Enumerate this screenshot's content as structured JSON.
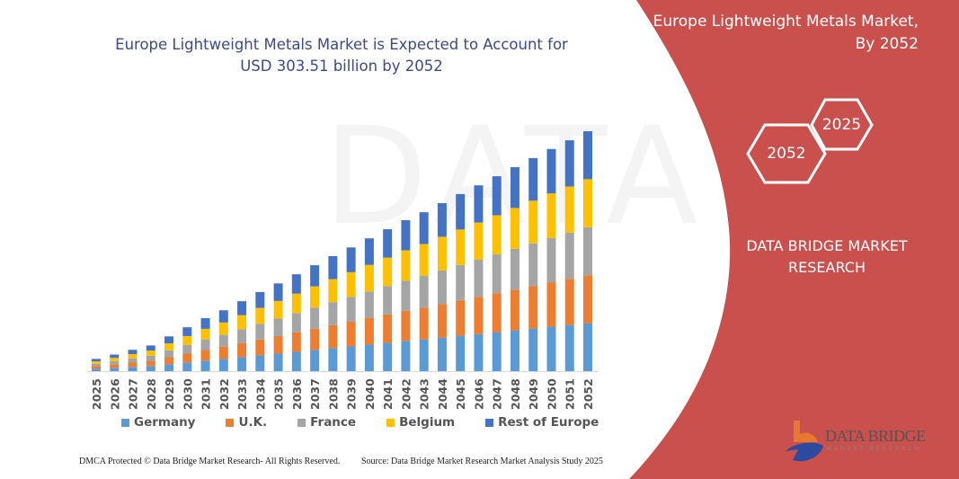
{
  "header": {
    "title_line1": "Europe Lightweight Metals Market is Expected to Account for",
    "title_line2": "USD 303.51 billion by 2052"
  },
  "side_panel": {
    "title_line1": "Europe Lightweight Metals Market,",
    "title_line2": "By 2052",
    "hex_left": "2052",
    "hex_right": "2025",
    "brand_line1": "DATA BRIDGE MARKET",
    "brand_line2": "RESEARCH",
    "logo_text": "DATA BRIDGE",
    "logo_sub": "MARKET RESEARCH",
    "color": "#c9504c"
  },
  "footer": {
    "left": "DMCA Protected © Data Bridge Market Research- All Rights Reserved.",
    "right": "Source: Data Bridge Market Research Market Analysis Study 2025"
  },
  "chart_data": {
    "type": "bar",
    "stacked": true,
    "title": "Europe Lightweight Metals Market is Expected to Account for USD 303.51 billion by 2052",
    "xlabel": "",
    "ylabel": "",
    "y_axis_visible": false,
    "grid": false,
    "legend_position": "bottom",
    "categories": [
      "2025",
      "2026",
      "2027",
      "2028",
      "2029",
      "2030",
      "2031",
      "2032",
      "2033",
      "2034",
      "2035",
      "2036",
      "2037",
      "2038",
      "2039",
      "2040",
      "2041",
      "2042",
      "2043",
      "2044",
      "2045",
      "2046",
      "2047",
      "2048",
      "2049",
      "2050",
      "2051",
      "2052"
    ],
    "ylim": [
      0,
      310
    ],
    "series": [
      {
        "name": "Germany",
        "color": "#5b9bd5",
        "values": [
          3.1,
          4.2,
          5.4,
          6.5,
          8.8,
          11.1,
          13.4,
          15.4,
          17.7,
          20.0,
          22.2,
          24.5,
          26.8,
          29.1,
          31.3,
          33.6,
          35.9,
          38.2,
          40.2,
          42.5,
          44.8,
          47.0,
          49.3,
          51.6,
          53.9,
          56.2,
          58.4,
          60.7
        ]
      },
      {
        "name": "U.K.",
        "color": "#ed7d31",
        "values": [
          3.1,
          4.2,
          5.4,
          6.5,
          8.8,
          11.1,
          13.4,
          15.4,
          17.7,
          20.0,
          22.2,
          24.5,
          26.8,
          29.1,
          31.3,
          33.6,
          35.9,
          38.2,
          40.2,
          42.5,
          44.8,
          47.0,
          49.3,
          51.6,
          53.9,
          56.2,
          58.4,
          60.7
        ]
      },
      {
        "name": "France",
        "color": "#a5a5a5",
        "values": [
          3.1,
          4.2,
          5.4,
          6.5,
          8.8,
          11.1,
          13.4,
          15.4,
          17.7,
          20.0,
          22.2,
          24.5,
          26.8,
          29.1,
          31.3,
          33.6,
          35.9,
          38.2,
          40.2,
          42.5,
          44.8,
          47.0,
          49.3,
          51.6,
          53.9,
          56.2,
          58.4,
          60.7
        ]
      },
      {
        "name": "Belgium",
        "color": "#ffc000",
        "values": [
          3.1,
          4.2,
          5.4,
          6.5,
          8.8,
          11.1,
          13.4,
          15.4,
          17.7,
          20.0,
          22.2,
          24.5,
          26.8,
          29.1,
          31.3,
          33.6,
          35.9,
          38.2,
          40.2,
          42.5,
          44.8,
          47.0,
          49.3,
          51.6,
          53.9,
          56.2,
          58.4,
          60.7
        ]
      },
      {
        "name": "Rest of Europe",
        "color": "#4472c4",
        "values": [
          3.1,
          4.2,
          5.4,
          6.5,
          8.8,
          11.1,
          13.4,
          15.4,
          17.7,
          20.0,
          22.2,
          24.5,
          26.8,
          29.1,
          31.3,
          33.6,
          35.9,
          38.2,
          40.2,
          42.5,
          44.8,
          47.0,
          49.3,
          51.6,
          53.9,
          56.2,
          58.4,
          60.7
        ]
      }
    ]
  }
}
